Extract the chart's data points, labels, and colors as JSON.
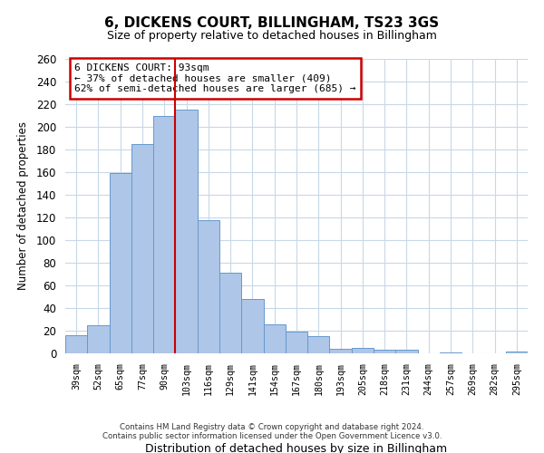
{
  "title": "6, DICKENS COURT, BILLINGHAM, TS23 3GS",
  "subtitle": "Size of property relative to detached houses in Billingham",
  "xlabel": "Distribution of detached houses by size in Billingham",
  "ylabel": "Number of detached properties",
  "categories": [
    "39sqm",
    "52sqm",
    "65sqm",
    "77sqm",
    "90sqm",
    "103sqm",
    "116sqm",
    "129sqm",
    "141sqm",
    "154sqm",
    "167sqm",
    "180sqm",
    "193sqm",
    "205sqm",
    "218sqm",
    "231sqm",
    "244sqm",
    "257sqm",
    "269sqm",
    "282sqm",
    "295sqm"
  ],
  "bar_heights": [
    16,
    25,
    159,
    185,
    210,
    215,
    118,
    71,
    48,
    26,
    19,
    15,
    4,
    5,
    3,
    3,
    0,
    1,
    0,
    0,
    2
  ],
  "bar_color": "#aec6e8",
  "bar_edge_color": "#6699cc",
  "ylim": [
    0,
    260
  ],
  "yticks": [
    0,
    20,
    40,
    60,
    80,
    100,
    120,
    140,
    160,
    180,
    200,
    220,
    240,
    260
  ],
  "vline_x": 4.5,
  "vline_color": "#cc0000",
  "annotation_title": "6 DICKENS COURT: 93sqm",
  "annotation_line1": "← 37% of detached houses are smaller (409)",
  "annotation_line2": "62% of semi-detached houses are larger (685) →",
  "annotation_box_color": "#ffffff",
  "annotation_box_edge": "#cc0000",
  "footer_line1": "Contains HM Land Registry data © Crown copyright and database right 2024.",
  "footer_line2": "Contains public sector information licensed under the Open Government Licence v3.0.",
  "background_color": "#ffffff",
  "grid_color": "#c8d8e8"
}
